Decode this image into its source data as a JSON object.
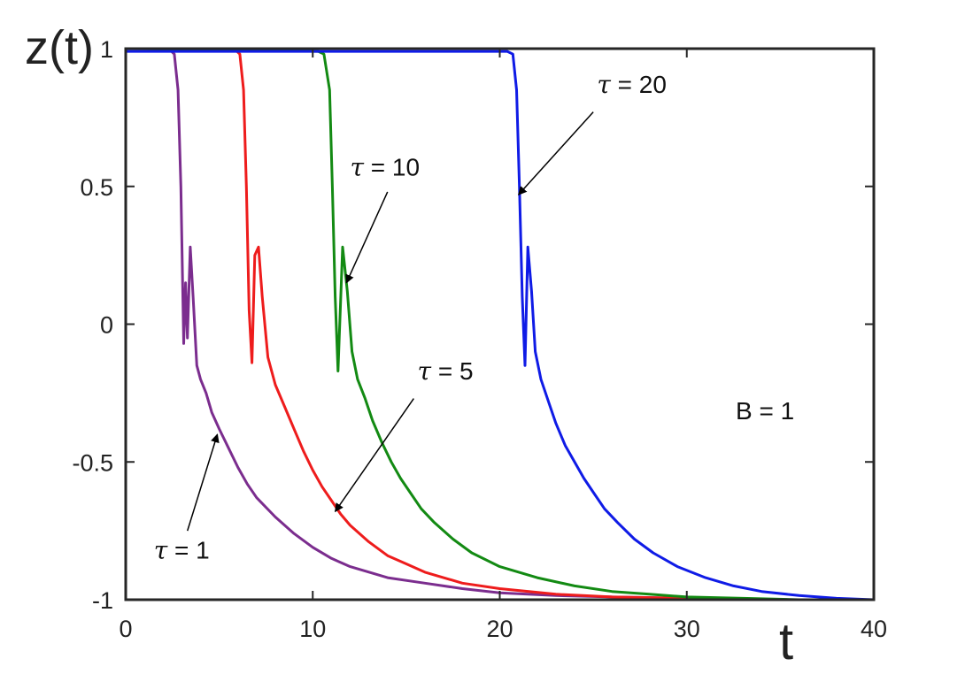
{
  "chart_data": {
    "type": "line",
    "title": "",
    "xlabel": "t",
    "ylabel": "z(t)",
    "xlim": [
      0,
      40
    ],
    "ylim": [
      -1,
      1
    ],
    "x_ticks": [
      0,
      10,
      20,
      30,
      40
    ],
    "x_tick_labels": [
      "0",
      "10",
      "20",
      "30",
      "40"
    ],
    "y_ticks": [
      1,
      0.5,
      0,
      -0.5,
      -1
    ],
    "y_tick_labels": [
      "1",
      "0.5",
      "0",
      "-0.5",
      "-1"
    ],
    "grid": false,
    "legend": "none",
    "series": [
      {
        "color": "#7b2d8e",
        "x": [
          0,
          2.3,
          2.6,
          2.8,
          2.95,
          3.1,
          3.2,
          3.3,
          3.45,
          3.6,
          3.8,
          4.0,
          4.3,
          4.6,
          5.0,
          5.5,
          6.0,
          6.5,
          7,
          8,
          9,
          10,
          11,
          12,
          14,
          16,
          18,
          20,
          23,
          26,
          30,
          35,
          40
        ],
        "y": [
          1,
          1,
          0.98,
          0.85,
          0.5,
          -0.07,
          0.15,
          -0.05,
          0.28,
          0.1,
          -0.15,
          -0.2,
          -0.25,
          -0.32,
          -0.38,
          -0.45,
          -0.52,
          -0.58,
          -0.63,
          -0.7,
          -0.76,
          -0.81,
          -0.85,
          -0.88,
          -0.92,
          -0.94,
          -0.96,
          -0.975,
          -0.985,
          -0.99,
          -0.995,
          -1.0,
          -1.0
        ]
      },
      {
        "color": "#ee1c1c",
        "x": [
          0,
          5.8,
          6.1,
          6.3,
          6.45,
          6.6,
          6.75,
          6.9,
          7.1,
          7.3,
          7.6,
          8.0,
          8.5,
          9,
          9.5,
          10,
          10.5,
          11,
          11.5,
          12,
          13,
          14,
          15,
          16,
          18,
          20,
          23,
          26,
          30,
          35,
          40
        ],
        "y": [
          1,
          1,
          0.98,
          0.85,
          0.5,
          0.05,
          -0.14,
          0.25,
          0.28,
          0.1,
          -0.12,
          -0.22,
          -0.3,
          -0.38,
          -0.46,
          -0.53,
          -0.59,
          -0.64,
          -0.69,
          -0.73,
          -0.79,
          -0.84,
          -0.87,
          -0.9,
          -0.94,
          -0.96,
          -0.98,
          -0.99,
          -0.995,
          -1.0,
          -1.0
        ]
      },
      {
        "color": "#138a13",
        "x": [
          0,
          10.3,
          10.6,
          10.9,
          11.05,
          11.2,
          11.35,
          11.6,
          11.85,
          12.1,
          12.4,
          12.8,
          13.2,
          13.7,
          14.2,
          14.7,
          15.2,
          15.8,
          16.5,
          17.5,
          18.5,
          20,
          22,
          24,
          26,
          28,
          30,
          33,
          36,
          40
        ],
        "y": [
          1,
          0.99,
          0.98,
          0.85,
          0.5,
          0.1,
          -0.17,
          0.28,
          0.12,
          -0.1,
          -0.2,
          -0.27,
          -0.35,
          -0.43,
          -0.5,
          -0.56,
          -0.61,
          -0.67,
          -0.72,
          -0.78,
          -0.83,
          -0.88,
          -0.92,
          -0.95,
          -0.97,
          -0.98,
          -0.99,
          -0.995,
          -1.0,
          -1.0
        ]
      },
      {
        "color": "#0f1be6",
        "x": [
          0,
          20.4,
          20.7,
          20.9,
          21.05,
          21.2,
          21.35,
          21.5,
          21.7,
          21.9,
          22.2,
          22.6,
          23.0,
          23.5,
          24.0,
          24.5,
          25.0,
          25.6,
          26.3,
          27.2,
          28.2,
          29.5,
          31,
          32.5,
          34,
          36,
          38,
          40
        ],
        "y": [
          0.99,
          0.99,
          0.98,
          0.85,
          0.5,
          0.1,
          -0.15,
          0.28,
          0.12,
          -0.1,
          -0.2,
          -0.28,
          -0.36,
          -0.44,
          -0.5,
          -0.56,
          -0.61,
          -0.67,
          -0.72,
          -0.78,
          -0.83,
          -0.88,
          -0.92,
          -0.95,
          -0.97,
          -0.985,
          -0.995,
          -1.0
        ]
      }
    ],
    "annotations": [
      {
        "tau": "τ",
        "text": " = 1",
        "x": 1.5,
        "y": -0.85,
        "arrow_from": [
          3.3,
          -0.75
        ],
        "arrow_to": [
          4.9,
          -0.4
        ]
      },
      {
        "tau": "τ",
        "text": " = 5",
        "x": 15.6,
        "y": -0.2,
        "arrow_from": [
          15.4,
          -0.27
        ],
        "arrow_to": [
          11.2,
          -0.68
        ]
      },
      {
        "tau": "τ",
        "text": " = 10",
        "x": 12.0,
        "y": 0.54,
        "arrow_from": [
          14.0,
          0.48
        ],
        "arrow_to": [
          11.8,
          0.15
        ]
      },
      {
        "tau": "τ",
        "text": " = 20",
        "x": 25.2,
        "y": 0.84,
        "arrow_from": [
          25.0,
          0.77
        ],
        "arrow_to": [
          21.0,
          0.47
        ]
      }
    ],
    "extra_text": "B = 1"
  }
}
